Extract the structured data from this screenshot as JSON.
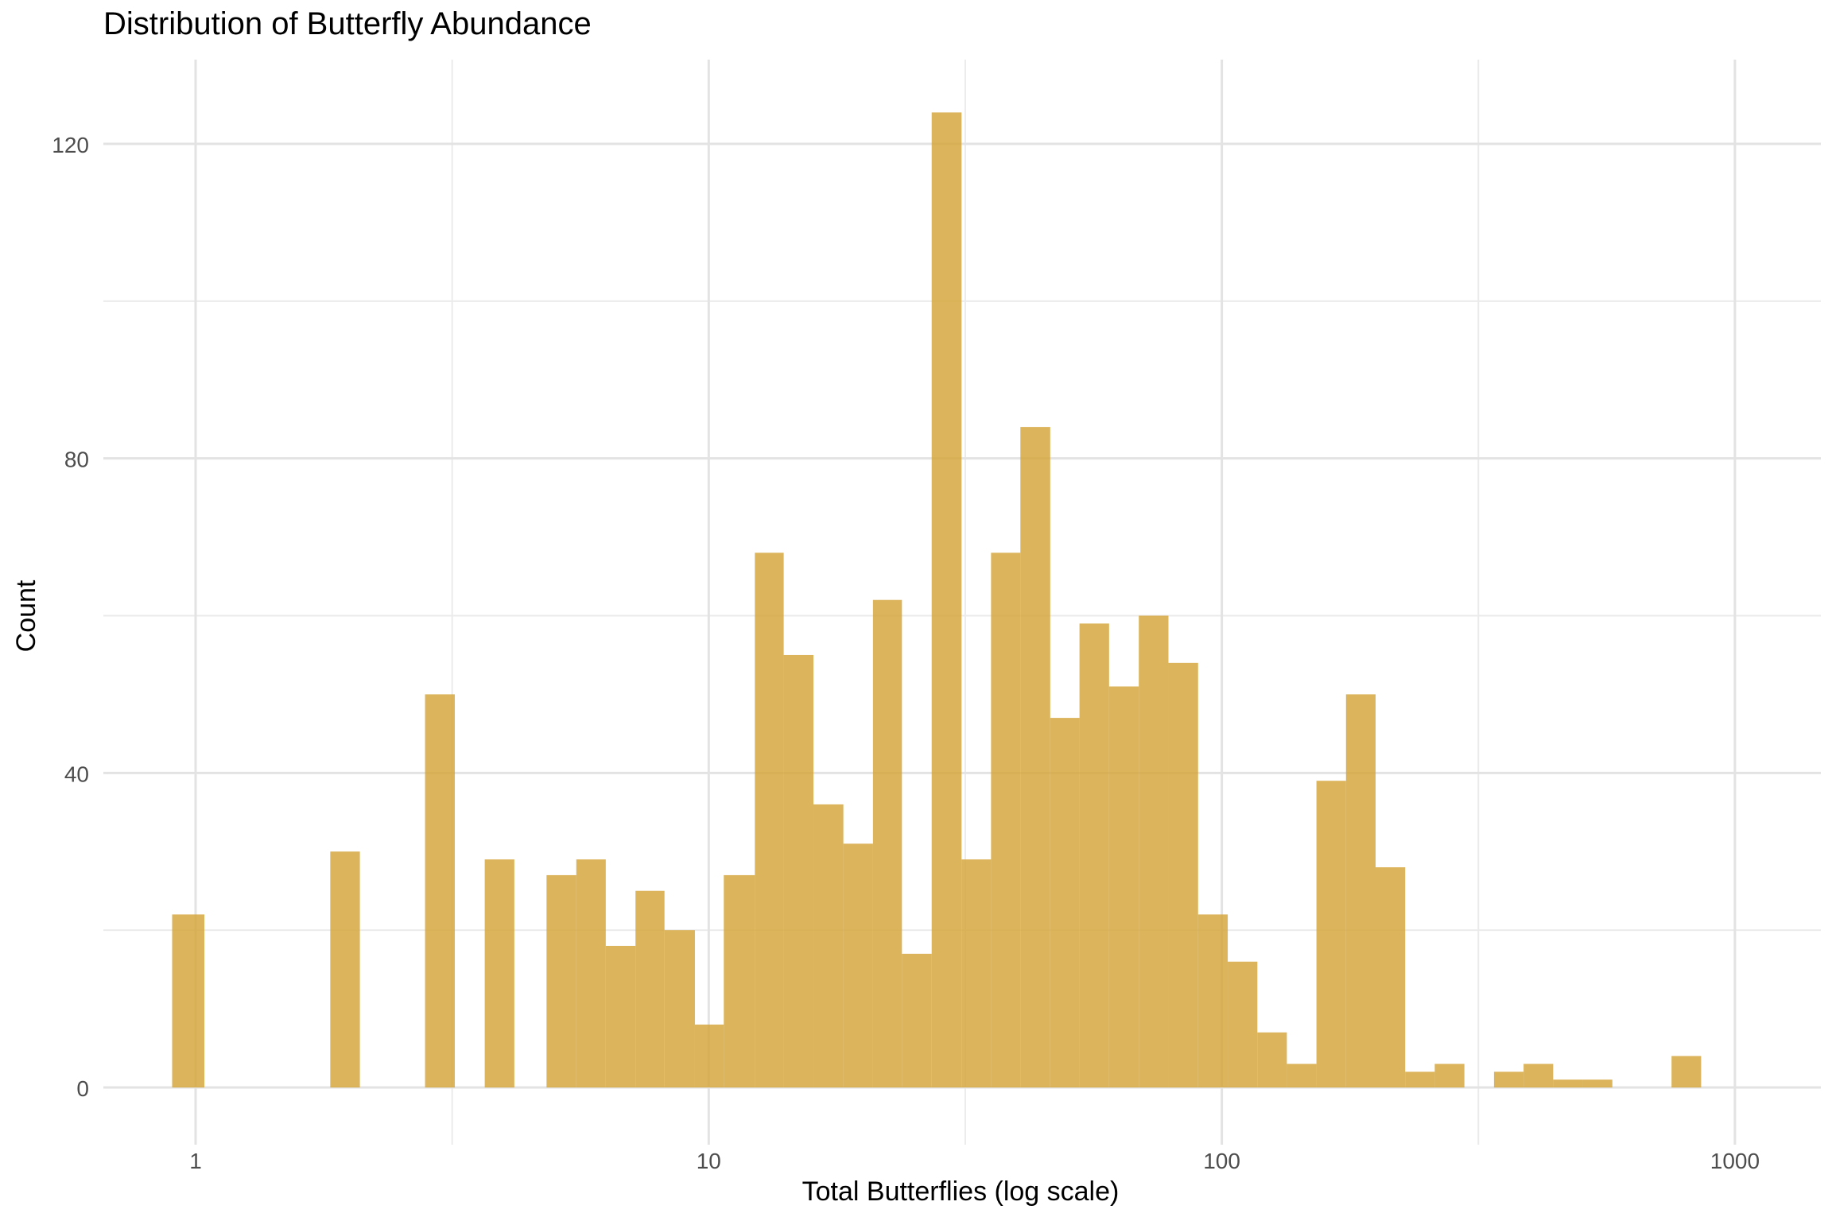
{
  "chart_data": {
    "type": "bar",
    "title": "Distribution of Butterfly Abundance",
    "xlabel": "Total Butterflies (log scale)",
    "ylabel": "Count",
    "x_scale": "log10",
    "xlim": [
      0.8,
      1300
    ],
    "ylim": [
      -6,
      128
    ],
    "x_ticks": [
      1,
      10,
      100,
      1000
    ],
    "x_tick_labels": [
      "1",
      "10",
      "100",
      "1000"
    ],
    "y_ticks": [
      0,
      40,
      80,
      120
    ],
    "y_tick_labels": [
      "0",
      "40",
      "80",
      "120"
    ],
    "grid": true,
    "bar_color": "#d4a337",
    "bins": [
      {
        "x0": 0.9,
        "x1": 1.04,
        "count": 22
      },
      {
        "x0": 1.83,
        "x1": 2.09,
        "count": 30
      },
      {
        "x0": 2.8,
        "x1": 3.2,
        "count": 50
      },
      {
        "x0": 3.66,
        "x1": 4.18,
        "count": 29
      },
      {
        "x0": 4.83,
        "x1": 5.52,
        "count": 27
      },
      {
        "x0": 5.52,
        "x1": 6.3,
        "count": 29
      },
      {
        "x0": 6.3,
        "x1": 7.2,
        "count": 18
      },
      {
        "x0": 7.2,
        "x1": 8.2,
        "count": 25
      },
      {
        "x0": 8.2,
        "x1": 9.4,
        "count": 20
      },
      {
        "x0": 9.4,
        "x1": 10.7,
        "count": 8
      },
      {
        "x0": 10.7,
        "x1": 12.3,
        "count": 27
      },
      {
        "x0": 12.3,
        "x1": 14.0,
        "count": 68
      },
      {
        "x0": 14.0,
        "x1": 16.0,
        "count": 55
      },
      {
        "x0": 16.0,
        "x1": 18.3,
        "count": 36
      },
      {
        "x0": 18.3,
        "x1": 20.9,
        "count": 31
      },
      {
        "x0": 20.9,
        "x1": 23.8,
        "count": 62
      },
      {
        "x0": 23.8,
        "x1": 27.2,
        "count": 17
      },
      {
        "x0": 27.2,
        "x1": 31.1,
        "count": 124
      },
      {
        "x0": 31.1,
        "x1": 35.5,
        "count": 29
      },
      {
        "x0": 35.5,
        "x1": 40.5,
        "count": 68
      },
      {
        "x0": 40.5,
        "x1": 46.3,
        "count": 84
      },
      {
        "x0": 46.3,
        "x1": 52.8,
        "count": 47
      },
      {
        "x0": 52.8,
        "x1": 60.3,
        "count": 59
      },
      {
        "x0": 60.3,
        "x1": 68.9,
        "count": 51
      },
      {
        "x0": 68.9,
        "x1": 78.7,
        "count": 60
      },
      {
        "x0": 78.7,
        "x1": 89.9,
        "count": 54
      },
      {
        "x0": 89.9,
        "x1": 102.7,
        "count": 22
      },
      {
        "x0": 102.7,
        "x1": 117.3,
        "count": 16
      },
      {
        "x0": 117.3,
        "x1": 133.9,
        "count": 7
      },
      {
        "x0": 133.9,
        "x1": 152.9,
        "count": 3
      },
      {
        "x0": 152.9,
        "x1": 174.6,
        "count": 39
      },
      {
        "x0": 174.6,
        "x1": 199.4,
        "count": 50
      },
      {
        "x0": 199.4,
        "x1": 227.7,
        "count": 28
      },
      {
        "x0": 227.7,
        "x1": 260.0,
        "count": 2
      },
      {
        "x0": 260.0,
        "x1": 297.0,
        "count": 3
      },
      {
        "x0": 297.0,
        "x1": 339.2,
        "count": 0
      },
      {
        "x0": 339.2,
        "x1": 387.4,
        "count": 2
      },
      {
        "x0": 387.4,
        "x1": 442.4,
        "count": 3
      },
      {
        "x0": 442.4,
        "x1": 505.2,
        "count": 1
      },
      {
        "x0": 505.2,
        "x1": 576.9,
        "count": 1
      },
      {
        "x0": 576.9,
        "x1": 658.9,
        "count": 0
      },
      {
        "x0": 658.9,
        "x1": 752.5,
        "count": 0
      },
      {
        "x0": 752.5,
        "x1": 859.3,
        "count": 4
      }
    ]
  }
}
